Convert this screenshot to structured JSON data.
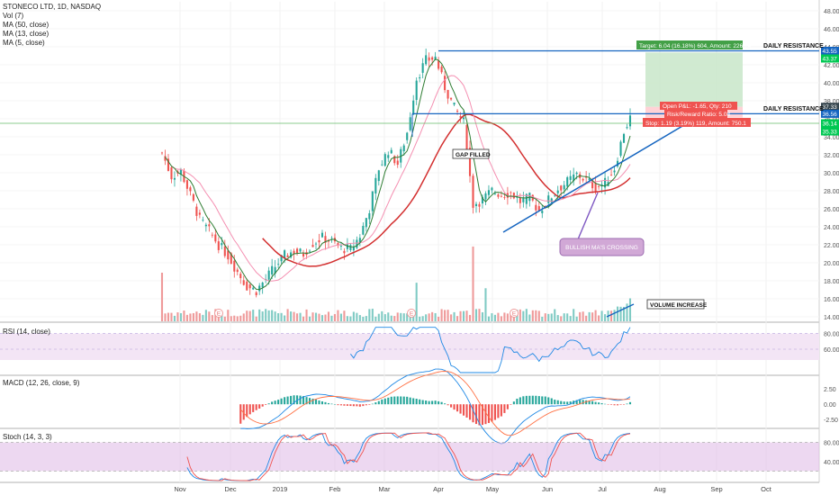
{
  "header": {
    "symbol": "STONECO LTD, 1D, NASDAQ",
    "indicators": [
      "Vol (7)",
      "MA (50, close)",
      "MA (13, close)",
      "MA (5, close)"
    ]
  },
  "panes": {
    "rsi_label": "RSI (14, close)",
    "macd_label": "MACD (12, 26, close, 9)",
    "stoch_label": "Stoch (14, 3, 3)"
  },
  "annotations": {
    "target": "Target: 6.04 (16.18%) 604, Amount: 2268.4",
    "open_pnl": "Open P&L: -1.65, Qty: 210",
    "risk_reward": "Risk/Reward Ratio: 5.08",
    "stop": "Stop: 1.19 (3.19%) 119, Amount: 750.1",
    "daily_resistance_1": "DAILY RESISTANCE",
    "daily_resistance_2": "DAILY RESISTANCE",
    "gap_filled": "GAP FILLED",
    "bullish_ma": "BULLISH MA'S CROSSING",
    "volume_increase": "VOLUME INCREASE",
    "earnings_marker": "E"
  },
  "colors": {
    "up": "#26a69a",
    "down": "#ef5350",
    "ma50": "#d32f2f",
    "ma13": "#2e7d32",
    "ma5": "#f48fb1",
    "resistance": "#1565c0",
    "trendline": "#1565c0",
    "target_zone": "#c8e6c9",
    "stop_zone": "#ffcdd2",
    "rsi_fill": "#f3e5f5",
    "rsi_line": "#1e88e5",
    "macd_line": "#1e88e5",
    "signal_line": "#ff7043",
    "stoch_k": "#1e88e5",
    "stoch_d": "#ef5350",
    "stoch_fill": "#e1bee7",
    "price_tag_green": "#00c853",
    "price_tag_dark": "#37474f",
    "callout_fill": "#d1a8d6"
  },
  "chart_data": {
    "type": "candlestick",
    "symbol": "STONECO LTD",
    "interval": "1D",
    "x_labels": [
      "Nov",
      "Dec",
      "2019",
      "Feb",
      "Mar",
      "Apr",
      "May",
      "Jun",
      "Jul",
      "Aug",
      "Sep",
      "Oct"
    ],
    "price_axis": {
      "ticks": [
        "48.00",
        "46.00",
        "44.00",
        "42.00",
        "40.00",
        "38.00",
        "36.00",
        "34.00",
        "32.00",
        "30.00",
        "28.00",
        "26.00",
        "24.00",
        "22.00",
        "20.00",
        "18.00",
        "16.00",
        "14.00"
      ],
      "range": [
        13.5,
        49
      ]
    },
    "price_tags": [
      {
        "label": "43.55",
        "value": 43.55,
        "kind": "blue"
      },
      {
        "label": "43.37",
        "value": 42.7,
        "kind": "green"
      },
      {
        "label": "37.33",
        "value": 37.33,
        "kind": "dark"
      },
      {
        "label": "36.56",
        "value": 36.56,
        "kind": "blue"
      },
      {
        "label": "36.14",
        "value": 35.5,
        "kind": "green"
      },
      {
        "label": "35.33",
        "value": 34.6,
        "kind": "green"
      }
    ],
    "rsi_axis": [
      "80.00",
      "60.00"
    ],
    "macd_axis": [
      "2.50",
      "0.00",
      "-2.50"
    ],
    "stoch_axis": [
      "80.00",
      "40.00"
    ],
    "resistance_levels": [
      43.55,
      36.56
    ],
    "trendline": {
      "from": [
        100,
        23.4
      ],
      "to": [
        132,
        35.9
      ]
    },
    "position": {
      "entry": 37.33,
      "target": 43.37,
      "stop": 36.14
    },
    "series_points": [
      {
        "t": 0,
        "p": 32.2
      },
      {
        "t": 3,
        "p": 29.6
      },
      {
        "t": 6,
        "p": 30.2
      },
      {
        "t": 9,
        "p": 27.5
      },
      {
        "t": 12,
        "p": 24.8
      },
      {
        "t": 15,
        "p": 23.5
      },
      {
        "t": 18,
        "p": 22.0
      },
      {
        "t": 21,
        "p": 20.8
      },
      {
        "t": 24,
        "p": 19.0
      },
      {
        "t": 27,
        "p": 17.4
      },
      {
        "t": 30,
        "p": 16.9
      },
      {
        "t": 33,
        "p": 18.2
      },
      {
        "t": 36,
        "p": 19.6
      },
      {
        "t": 39,
        "p": 20.8
      },
      {
        "t": 42,
        "p": 21.3
      },
      {
        "t": 45,
        "p": 21.0
      },
      {
        "t": 48,
        "p": 22.2
      },
      {
        "t": 51,
        "p": 22.8
      },
      {
        "t": 54,
        "p": 22.4
      },
      {
        "t": 57,
        "p": 21.6
      },
      {
        "t": 60,
        "p": 21.5
      },
      {
        "t": 63,
        "p": 23.0
      },
      {
        "t": 66,
        "p": 26.0
      },
      {
        "t": 69,
        "p": 30.5
      },
      {
        "t": 72,
        "p": 32.5
      },
      {
        "t": 75,
        "p": 31.0
      },
      {
        "t": 78,
        "p": 34.5
      },
      {
        "t": 81,
        "p": 40.5
      },
      {
        "t": 84,
        "p": 42.5
      },
      {
        "t": 87,
        "p": 42.8
      },
      {
        "t": 90,
        "p": 39.5
      },
      {
        "t": 93,
        "p": 37.2
      },
      {
        "t": 96,
        "p": 35.6
      },
      {
        "t": 99,
        "p": 26.5
      },
      {
        "t": 102,
        "p": 27.0
      },
      {
        "t": 105,
        "p": 28.0
      },
      {
        "t": 108,
        "p": 27.6
      },
      {
        "t": 111,
        "p": 27.8
      },
      {
        "t": 114,
        "p": 26.8
      },
      {
        "t": 117,
        "p": 27.2
      },
      {
        "t": 120,
        "p": 25.8
      },
      {
        "t": 123,
        "p": 27.0
      },
      {
        "t": 126,
        "p": 28.2
      },
      {
        "t": 129,
        "p": 29.0
      },
      {
        "t": 132,
        "p": 29.8
      },
      {
        "t": 135,
        "p": 29.2
      },
      {
        "t": 138,
        "p": 28.4
      },
      {
        "t": 141,
        "p": 28.9
      },
      {
        "t": 144,
        "p": 30.5
      },
      {
        "t": 147,
        "p": 34.6
      },
      {
        "t": 149,
        "p": 36.1
      }
    ]
  }
}
